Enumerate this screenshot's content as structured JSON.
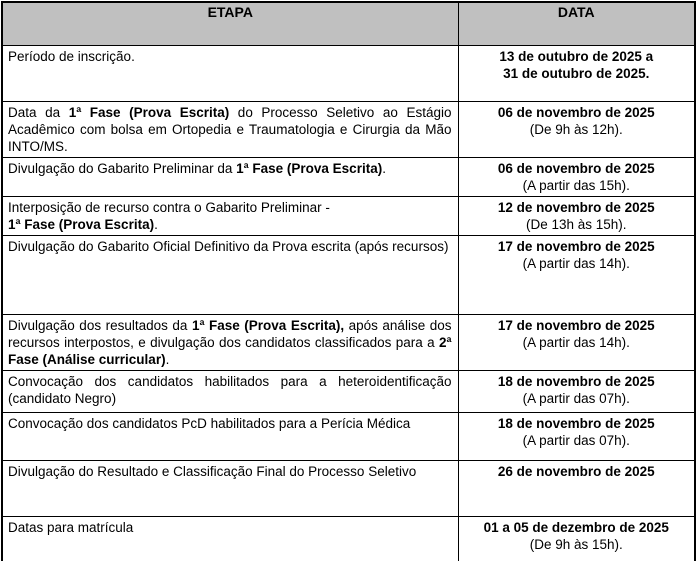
{
  "document": {
    "styles": {
      "header_bg": "#c0c0c0",
      "border_color": "#000000",
      "text_color": "#000000"
    },
    "table": {
      "headers": [
        "ETAPA",
        "DATA"
      ],
      "rows": [
        {
          "etapa": [
            {
              "text": "Período de inscrição.",
              "bold": false
            }
          ],
          "data": [
            {
              "text": "13 de outubro de 2025 a",
              "bold": true
            },
            {
              "text": "31 de outubro de 2025.",
              "bold": true
            }
          ]
        },
        {
          "etapa": [
            {
              "text": "Data da ",
              "bold": false
            },
            {
              "text": "1ª Fase (Prova Escrita)",
              "bold": true
            },
            {
              "text": " do Processo Seletivo ao Estágio Acadêmico com bolsa em Ortopedia e Traumatologia e Cirurgia da Mão INTO/MS.",
              "bold": false
            }
          ],
          "data": [
            {
              "text": "06 de novembro de 2025",
              "bold": true
            },
            {
              "text": "(De 9h às 12h).",
              "bold": false
            }
          ]
        },
        {
          "etapa": [
            {
              "text": "Divulgação do Gabarito Preliminar da ",
              "bold": false
            },
            {
              "text": "1ª Fase (Prova Escrita)",
              "bold": true
            },
            {
              "text": ".",
              "bold": false
            }
          ],
          "data": [
            {
              "text": "06 de novembro de 2025",
              "bold": true
            },
            {
              "text": "(A partir das 15h).",
              "bold": false
            }
          ]
        },
        {
          "etapa": [
            {
              "text": "Interposição de recurso contra o Gabarito Preliminar -",
              "bold": false,
              "break_after": true
            },
            {
              "text": "1ª Fase (Prova Escrita)",
              "bold": true
            },
            {
              "text": ".",
              "bold": false
            }
          ],
          "data": [
            {
              "text": "12 de novembro de 2025",
              "bold": true
            },
            {
              "text": "(De 13h às 15h).",
              "bold": false
            }
          ]
        },
        {
          "etapa": [
            {
              "text": "Divulgação do Gabarito Oficial Definitivo da Prova escrita (após recursos)",
              "bold": false
            }
          ],
          "data": [
            {
              "text": "17 de novembro de 2025",
              "bold": true
            },
            {
              "text": "(A partir das 14h).",
              "bold": false
            }
          ]
        },
        {
          "etapa": [
            {
              "text": "Divulgação dos resultados da ",
              "bold": false
            },
            {
              "text": "1ª Fase (Prova Escrita),",
              "bold": true
            },
            {
              "text": " após análise dos recursos interpostos, e divulgação dos candidatos  classificados para a ",
              "bold": false
            },
            {
              "text": "2ª Fase (Análise curricular)",
              "bold": true
            },
            {
              "text": ".",
              "bold": false
            }
          ],
          "data": [
            {
              "text": "17 de novembro de 2025",
              "bold": true
            },
            {
              "text": "(A partir das 14h).",
              "bold": false
            }
          ]
        },
        {
          "etapa": [
            {
              "text": "Convocação dos candidatos habilitados para a heteroidentificação (candidato Negro)",
              "bold": false
            }
          ],
          "data": [
            {
              "text": "18 de novembro de 2025",
              "bold": true
            },
            {
              "text": "(A partir das 07h).",
              "bold": false
            }
          ]
        },
        {
          "etapa": [
            {
              "text": "Convocação dos candidatos PcD habilitados para a Perícia Médica",
              "bold": false
            }
          ],
          "data": [
            {
              "text": "18 de novembro de 2025",
              "bold": true
            },
            {
              "text": "(A partir das 07h).",
              "bold": false
            }
          ]
        },
        {
          "etapa": [
            {
              "text": "Divulgação do Resultado e Classificação Final do Processo Seletivo",
              "bold": false
            }
          ],
          "data": [
            {
              "text": "26 de novembro de 2025",
              "bold": true
            }
          ]
        },
        {
          "etapa": [
            {
              "text": "Datas para matrícula",
              "bold": false
            }
          ],
          "data": [
            {
              "text": "01 a 05 de dezembro de 2025",
              "bold": true
            },
            {
              "text": "(De 9h às 15h).",
              "bold": false
            }
          ]
        }
      ]
    }
  }
}
